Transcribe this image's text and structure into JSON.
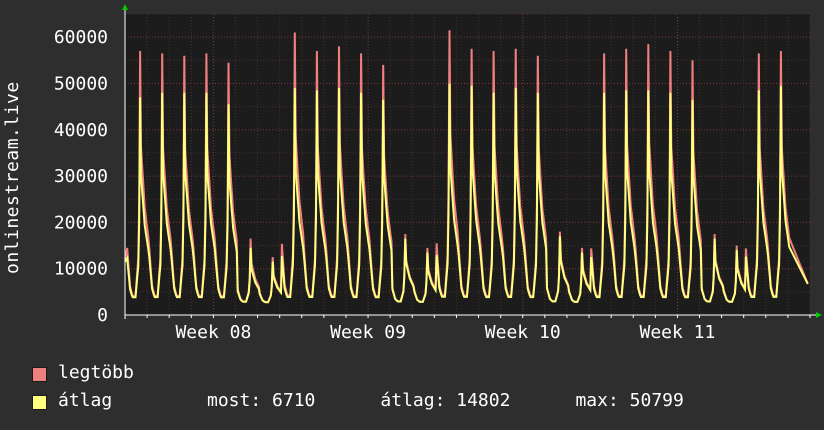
{
  "chart_data": {
    "type": "line",
    "ylabel": "onlinestream.live",
    "ylim": [
      0,
      65000
    ],
    "yticks": [
      0,
      10000,
      20000,
      30000,
      40000,
      50000,
      60000
    ],
    "xtick_labels": [
      "Week 08",
      "Week 09",
      "Week 10",
      "Week 11"
    ],
    "xtick_days": [
      4,
      11,
      18,
      25
    ],
    "xlim_days": [
      0,
      31
    ],
    "grid": true,
    "daily_peaks": {
      "max": [
        57000,
        56500,
        56000,
        56500,
        54500,
        16500,
        12500,
        61000,
        57000,
        58000,
        56500,
        54000,
        17500,
        14500,
        61500,
        57500,
        57000,
        57500,
        56000,
        18000,
        14500,
        56500,
        57500,
        58500,
        57000,
        55000,
        17500,
        15000,
        56500,
        57000
      ],
      "avg": [
        47000,
        48000,
        48000,
        48000,
        45500,
        14500,
        11500,
        49000,
        48500,
        49000,
        48000,
        46500,
        16500,
        13500,
        50000,
        49500,
        48000,
        49000,
        48000,
        17000,
        13500,
        48000,
        48500,
        48500,
        48000,
        46500,
        16500,
        14000,
        48500,
        49500
      ]
    },
    "daily_min": 2500,
    "series": [
      {
        "name": "legtöbb",
        "color": "#f07f7f"
      },
      {
        "name": "átlag",
        "color": "#ffff80"
      }
    ]
  },
  "legend": {
    "max_label": "legtöbb",
    "avg_label": "átlag",
    "stats": "most: 6710      átlag: 14802      max: 50799"
  },
  "colors": {
    "background": "#2e2e2e",
    "plot": "#1c1c1c",
    "grid": "#6a3a3a",
    "max": "#f07f7f",
    "avg": "#ffff80",
    "text": "#ffffff",
    "arrow": "#00cc00"
  }
}
